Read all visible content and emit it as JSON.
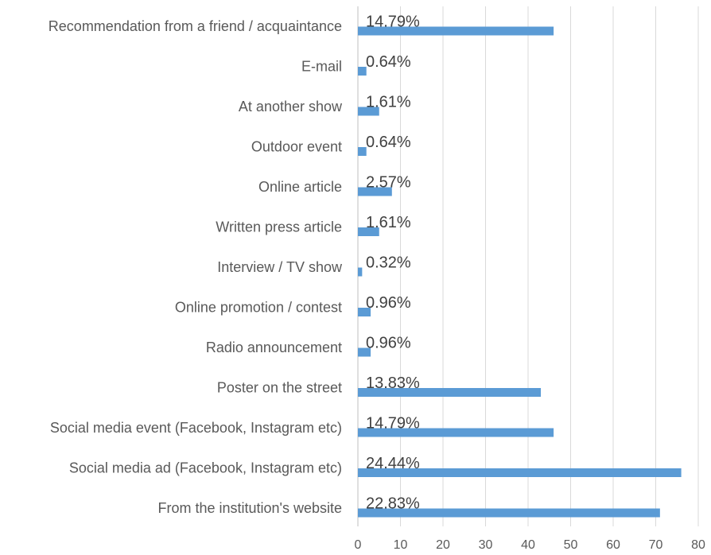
{
  "chart_data": {
    "type": "bar",
    "orientation": "horizontal",
    "categories": [
      "Recommendation from a friend / acquaintance",
      "E-mail",
      "At another show",
      "Outdoor event",
      "Online article",
      "Written press article",
      "Interview / TV show",
      "Online promotion / contest",
      "Radio announcement",
      "Poster on the street",
      "Social media event (Facebook, Instagram etc)",
      "Social media ad (Facebook, Instagram etc)",
      "From the institution's website"
    ],
    "series": [
      {
        "values": [
          46,
          2,
          5,
          2,
          8,
          5,
          1,
          3,
          3,
          43,
          46,
          76,
          71
        ],
        "data_labels": [
          "14.79%",
          "0.64%",
          "1.61%",
          "0.64%",
          "2.57%",
          "1.61%",
          "0.32%",
          "0.96%",
          "0.96%",
          "13.83%",
          "14.79%",
          "24.44%",
          "22.83%"
        ],
        "color": "#5b9bd5"
      }
    ],
    "xlim": [
      0,
      80
    ],
    "xticks": [
      "0",
      "10",
      "20",
      "30",
      "40",
      "50",
      "60",
      "70",
      "80"
    ],
    "grid": "vertical",
    "title": "",
    "xlabel": "",
    "ylabel": ""
  }
}
